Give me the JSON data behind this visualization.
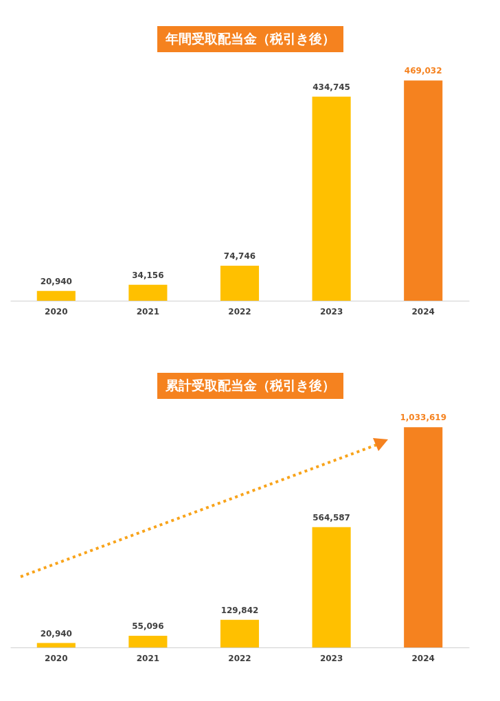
{
  "chart_data": [
    {
      "type": "bar",
      "title": "年間受取配当金（税引き後）",
      "categories": [
        "2020",
        "2021",
        "2022",
        "2023",
        "2024"
      ],
      "values": [
        20940,
        34156,
        74746,
        434745,
        469032
      ],
      "value_labels": [
        "20,940",
        "34,156",
        "74,746",
        "434,745",
        "469,032"
      ],
      "colors": [
        "#ffc000",
        "#ffc000",
        "#ffc000",
        "#ffc000",
        "#f5821f"
      ],
      "tick_labels": "x"
    },
    {
      "type": "bar",
      "title": "累計受取配当金（税引き後）",
      "categories": [
        "2020",
        "2021",
        "2022",
        "2023",
        "2024"
      ],
      "values": [
        20940,
        55096,
        129842,
        564587,
        1033619
      ],
      "value_labels": [
        "20,940",
        "55,096",
        "129,842",
        "564,587",
        "1,033,619"
      ],
      "colors": [
        "#ffc000",
        "#ffc000",
        "#ffc000",
        "#ffc000",
        "#f5821f"
      ],
      "tick_labels": "x"
    }
  ]
}
